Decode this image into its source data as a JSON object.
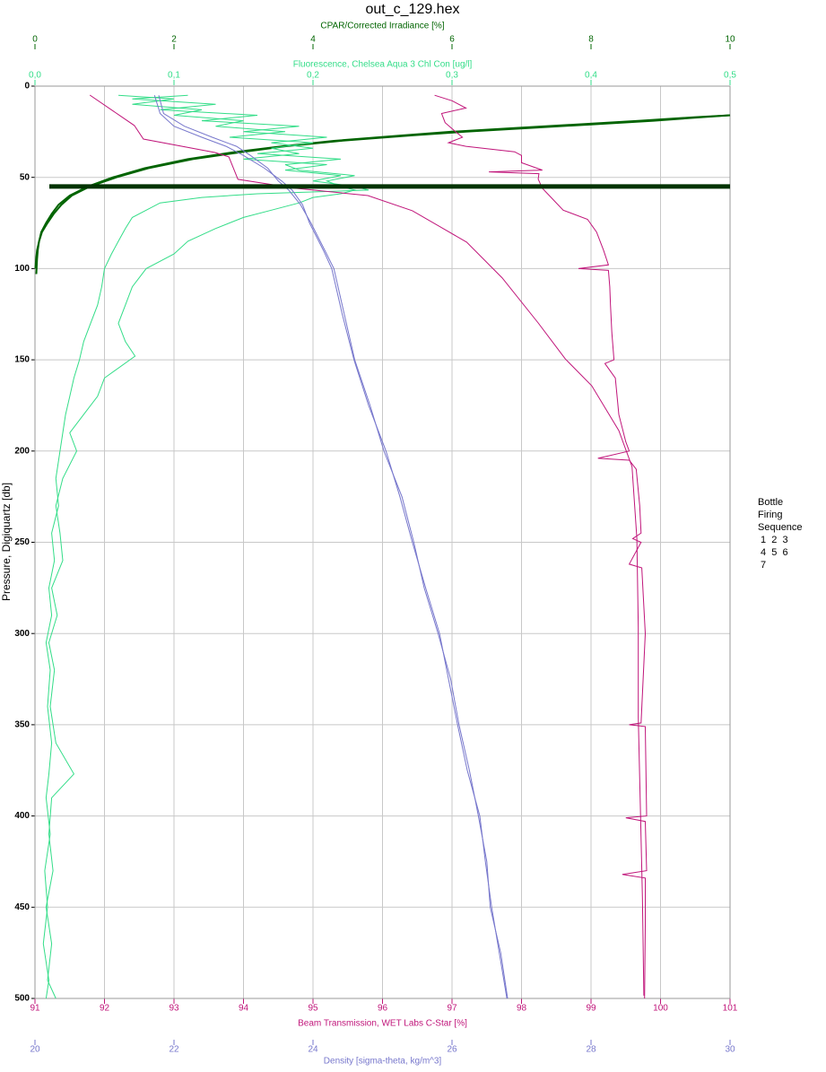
{
  "chart_data": {
    "type": "profile",
    "title": "out_c_129.hex",
    "y_label": "Pressure, Digiquartz [db]",
    "ylim": [
      0,
      500
    ],
    "yticks": [
      0,
      50,
      100,
      150,
      200,
      250,
      300,
      350,
      400,
      450,
      500
    ],
    "y_inverted": true,
    "grid": true,
    "axes": [
      {
        "label": "CPAR/Corrected Irradiance [%]",
        "position": "top",
        "color": "#006400",
        "lim": [
          0,
          10
        ],
        "ticks": [
          0,
          2,
          4,
          6,
          8,
          10
        ]
      },
      {
        "label": "Fluorescence, Chelsea Aqua 3 Chl Con [ug/l]",
        "position": "top",
        "color": "#33dd88",
        "lim": [
          0,
          0.5
        ],
        "ticks": [
          {
            "value": 0,
            "label": "0,0"
          },
          {
            "value": 0.1,
            "label": "0,1"
          },
          {
            "value": 0.2,
            "label": "0,2"
          },
          {
            "value": 0.3,
            "label": "0,3"
          },
          {
            "value": 0.4,
            "label": "0,4"
          },
          {
            "value": 0.5,
            "label": "0,5"
          }
        ]
      },
      {
        "label": "Beam Transmission, WET Labs C-Star [%]",
        "position": "bottom",
        "color": "#c0157a",
        "lim": [
          91,
          101
        ],
        "ticks": [
          91,
          92,
          93,
          94,
          95,
          96,
          97,
          98,
          99,
          100,
          101
        ]
      },
      {
        "label": "Density [sigma-theta, kg/m^3]",
        "position": "bottom",
        "color": "#7777cc",
        "lim": [
          20,
          30
        ],
        "ticks": [
          20,
          22,
          24,
          26,
          28,
          30
        ]
      }
    ],
    "series": [
      {
        "axis": 0,
        "color": "#006400",
        "pressure": [
          16,
          17,
          19,
          21,
          23,
          25,
          27,
          30,
          33,
          36,
          40,
          45,
          50,
          55,
          60,
          65,
          70,
          75,
          80,
          85,
          90,
          95,
          100
        ],
        "values": [
          10.0,
          9.6,
          8.9,
          8.0,
          7.1,
          6.2,
          5.43,
          4.4,
          3.6,
          3.0,
          2.27,
          1.63,
          1.17,
          0.79,
          0.53,
          0.38,
          0.27,
          0.18,
          0.1,
          0.06,
          0.03,
          0.015,
          0.005
        ]
      },
      {
        "axis": 0,
        "color": "#006400",
        "pressure": [
          16,
          17,
          19,
          21,
          23,
          25,
          27,
          30,
          33,
          36,
          40,
          45,
          50,
          55,
          60,
          65,
          70,
          75,
          80,
          85,
          90,
          95,
          103
        ],
        "values": [
          10.0,
          9.5,
          8.7,
          7.8,
          6.9,
          6.0,
          5.3,
          4.3,
          3.55,
          2.9,
          2.2,
          1.58,
          1.12,
          0.76,
          0.5,
          0.34,
          0.24,
          0.16,
          0.09,
          0.06,
          0.04,
          0.03,
          0.02
        ]
      },
      {
        "axis": 1,
        "color": "#33dd88",
        "pressure": [
          5,
          7,
          10,
          13,
          16,
          19,
          22,
          25,
          28,
          31,
          34,
          37,
          40,
          43,
          46,
          49,
          52,
          55,
          57,
          59,
          61,
          64,
          68,
          72,
          78,
          85,
          92,
          100,
          110,
          120,
          130,
          140,
          150,
          160,
          170,
          180,
          190,
          200,
          215,
          230,
          245,
          260,
          275,
          290,
          305,
          320,
          340,
          360,
          377,
          390,
          410,
          430,
          450,
          470,
          490,
          500
        ],
        "values": [
          0.06,
          0.1,
          0.07,
          0.12,
          0.1,
          0.15,
          0.13,
          0.18,
          0.14,
          0.2,
          0.17,
          0.19,
          0.15,
          0.21,
          0.18,
          0.22,
          0.2,
          0.23,
          0.24,
          0.16,
          0.12,
          0.09,
          0.08,
          0.07,
          0.065,
          0.06,
          0.055,
          0.05,
          0.048,
          0.045,
          0.04,
          0.035,
          0.032,
          0.028,
          0.025,
          0.022,
          0.02,
          0.018,
          0.015,
          0.017,
          0.012,
          0.014,
          0.01,
          0.012,
          0.008,
          0.011,
          0.009,
          0.012,
          0.01,
          0.008,
          0.011,
          0.007,
          0.009,
          0.006,
          0.01,
          0.008
        ]
      },
      {
        "axis": 1,
        "color": "#33dd88",
        "pressure": [
          5,
          7,
          10,
          13,
          16,
          19,
          22,
          25,
          28,
          31,
          34,
          37,
          40,
          43,
          46,
          49,
          52,
          55,
          57,
          59,
          61,
          64,
          68,
          72,
          78,
          85,
          92,
          100,
          110,
          120,
          130,
          140,
          148,
          160,
          170,
          180,
          190,
          200,
          215,
          230,
          245,
          260,
          275,
          290,
          305,
          320,
          340,
          360,
          377,
          390,
          410,
          430,
          450,
          470,
          490,
          500
        ],
        "values": [
          0.11,
          0.07,
          0.13,
          0.09,
          0.16,
          0.12,
          0.19,
          0.15,
          0.21,
          0.17,
          0.2,
          0.16,
          0.22,
          0.18,
          0.19,
          0.23,
          0.21,
          0.22,
          0.23,
          0.22,
          0.2,
          0.19,
          0.17,
          0.15,
          0.13,
          0.11,
          0.1,
          0.08,
          0.07,
          0.065,
          0.06,
          0.065,
          0.072,
          0.05,
          0.045,
          0.035,
          0.025,
          0.03,
          0.02,
          0.015,
          0.018,
          0.02,
          0.012,
          0.016,
          0.01,
          0.014,
          0.011,
          0.015,
          0.028,
          0.012,
          0.01,
          0.013,
          0.008,
          0.012,
          0.009,
          0.015
        ]
      },
      {
        "axis": 2,
        "color": "#c0157a",
        "pressure": [
          5,
          8,
          12,
          15,
          20,
          25,
          28,
          31,
          33,
          36,
          38,
          42,
          46,
          47,
          48,
          51,
          56,
          62,
          68,
          73,
          80,
          90,
          98,
          100,
          101,
          110,
          120,
          135,
          150,
          152,
          160,
          180,
          195,
          200,
          204,
          205,
          210,
          230,
          245,
          248,
          250,
          262,
          264,
          300,
          349,
          350,
          351,
          400,
          401,
          403,
          430,
          432,
          434,
          460,
          500
        ],
        "values": [
          96.75,
          97.0,
          97.2,
          96.85,
          96.9,
          97.05,
          97.15,
          96.95,
          97.2,
          97.9,
          98.0,
          98.0,
          98.3,
          97.53,
          98.25,
          98.24,
          98.3,
          98.45,
          98.6,
          98.95,
          99.08,
          99.18,
          99.25,
          98.82,
          99.25,
          99.27,
          99.28,
          99.3,
          99.33,
          99.2,
          99.35,
          99.4,
          99.5,
          99.55,
          99.1,
          99.55,
          99.65,
          99.7,
          99.72,
          99.6,
          99.72,
          99.55,
          99.73,
          99.78,
          99.72,
          99.55,
          99.78,
          99.8,
          99.5,
          99.78,
          99.8,
          99.45,
          99.78,
          99.78,
          99.77
        ]
      },
      {
        "axis": 2,
        "color": "#c0157a",
        "pressure": [
          4.9,
          21.6,
          29,
          36.4,
          38.8,
          51.1,
          56,
          60,
          68.3,
          85.5,
          105,
          129.8,
          149.5,
          164.2,
          188.8,
          208.5,
          247.8,
          297,
          346,
          395,
          444.5,
          498.5
        ],
        "values": [
          91.79,
          92.43,
          92.56,
          93.59,
          93.79,
          93.92,
          94.75,
          95.79,
          96.43,
          97.21,
          97.72,
          98.24,
          98.63,
          99.01,
          99.4,
          99.59,
          99.66,
          99.68,
          99.68,
          99.71,
          99.74,
          99.76
        ]
      },
      {
        "axis": 3,
        "color": "#7777cc",
        "pressure": [
          5,
          15,
          22,
          28,
          33,
          38,
          45,
          52,
          57,
          65,
          75,
          90,
          100,
          125,
          150,
          175,
          200,
          225,
          250,
          275,
          300,
          325,
          350,
          375,
          400,
          425,
          450,
          475,
          500
        ],
        "values": [
          21.72,
          21.8,
          22.0,
          22.4,
          22.75,
          23.0,
          23.3,
          23.55,
          23.7,
          23.85,
          23.95,
          24.15,
          24.27,
          24.42,
          24.59,
          24.8,
          25.05,
          25.25,
          25.43,
          25.62,
          25.82,
          25.95,
          26.08,
          26.22,
          26.4,
          26.48,
          26.57,
          26.68,
          26.79
        ]
      },
      {
        "axis": 3,
        "color": "#7777cc",
        "pressure": [
          5,
          15,
          22,
          28,
          33,
          38,
          45,
          52,
          57,
          65,
          75,
          90,
          100,
          125,
          150,
          175,
          200,
          225,
          250,
          275,
          300,
          325,
          350,
          375,
          400,
          425,
          450,
          475,
          500
        ],
        "values": [
          21.78,
          21.85,
          22.15,
          22.55,
          22.9,
          23.1,
          23.35,
          23.5,
          23.65,
          23.82,
          23.97,
          24.17,
          24.3,
          24.45,
          24.6,
          24.82,
          25.02,
          25.28,
          25.45,
          25.6,
          25.8,
          25.98,
          26.1,
          26.25,
          26.38,
          26.5,
          26.55,
          26.7,
          26.8
        ]
      }
    ],
    "bottle_pressure": 55,
    "bottle_color": "#003300",
    "bottle_legend": {
      "title_lines": [
        "Bottle",
        "Firing",
        "Sequence"
      ],
      "rows": [
        "1  2  3",
        "4  5  6",
        "7"
      ]
    }
  }
}
